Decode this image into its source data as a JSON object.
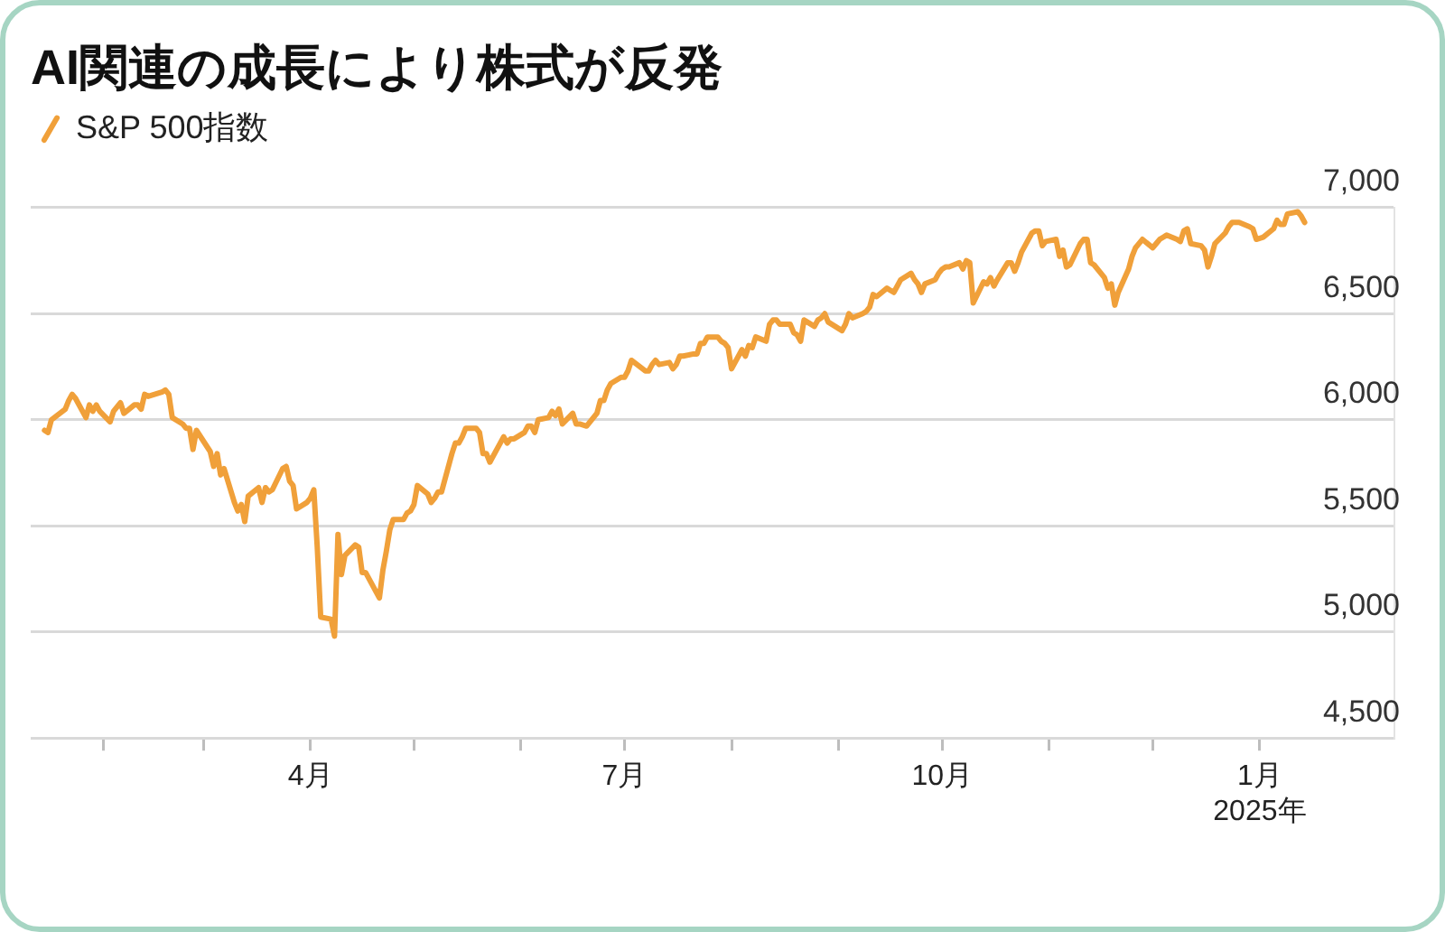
{
  "chart_data": {
    "type": "line",
    "title": "AI関連の成長により株式が反発",
    "x": [
      "2024-01-15",
      "2024-01-16",
      "2024-01-17",
      "2024-01-21",
      "2024-01-22",
      "2024-01-23",
      "2024-01-24",
      "2024-01-27",
      "2024-01-28",
      "2024-01-29",
      "2024-01-30",
      "2024-01-31",
      "2024-02-03",
      "2024-02-04",
      "2024-02-05",
      "2024-02-06",
      "2024-02-07",
      "2024-02-10",
      "2024-02-11",
      "2024-02-12",
      "2024-02-13",
      "2024-02-14",
      "2024-02-18",
      "2024-02-19",
      "2024-02-20",
      "2024-02-21",
      "2024-02-24",
      "2024-02-25",
      "2024-02-26",
      "2024-02-27",
      "2024-02-28",
      "2024-03-03",
      "2024-03-04",
      "2024-03-05",
      "2024-03-06",
      "2024-03-07",
      "2024-03-10",
      "2024-03-11",
      "2024-03-12",
      "2024-03-13",
      "2024-03-14",
      "2024-03-17",
      "2024-03-18",
      "2024-03-19",
      "2024-03-20",
      "2024-03-21",
      "2024-03-24",
      "2024-03-25",
      "2024-03-26",
      "2024-03-27",
      "2024-03-28",
      "2024-03-31",
      "2024-04-01",
      "2024-04-02",
      "2024-04-03",
      "2024-04-04",
      "2024-04-07",
      "2024-04-08",
      "2024-04-09",
      "2024-04-10",
      "2024-04-11",
      "2024-04-14",
      "2024-04-15",
      "2024-04-16",
      "2024-04-17",
      "2024-04-21",
      "2024-04-22",
      "2024-04-23",
      "2024-04-24",
      "2024-04-25",
      "2024-04-28",
      "2024-04-29",
      "2024-04-30",
      "2024-05-01",
      "2024-05-02",
      "2024-05-05",
      "2024-05-06",
      "2024-05-07",
      "2024-05-08",
      "2024-05-09",
      "2024-05-12",
      "2024-05-13",
      "2024-05-14",
      "2024-05-15",
      "2024-05-16",
      "2024-05-19",
      "2024-05-20",
      "2024-05-21",
      "2024-05-22",
      "2024-05-23",
      "2024-05-27",
      "2024-05-28",
      "2024-05-29",
      "2024-05-30",
      "2024-06-02",
      "2024-06-03",
      "2024-06-04",
      "2024-06-05",
      "2024-06-06",
      "2024-06-09",
      "2024-06-10",
      "2024-06-11",
      "2024-06-12",
      "2024-06-13",
      "2024-06-16",
      "2024-06-17",
      "2024-06-18",
      "2024-06-20",
      "2024-06-23",
      "2024-06-24",
      "2024-06-25",
      "2024-06-26",
      "2024-06-27",
      "2024-06-30",
      "2024-07-01",
      "2024-07-02",
      "2024-07-03",
      "2024-07-07",
      "2024-07-08",
      "2024-07-09",
      "2024-07-10",
      "2024-07-11",
      "2024-07-14",
      "2024-07-15",
      "2024-07-16",
      "2024-07-17",
      "2024-07-18",
      "2024-07-21",
      "2024-07-22",
      "2024-07-23",
      "2024-07-24",
      "2024-07-25",
      "2024-07-28",
      "2024-07-29",
      "2024-07-30",
      "2024-07-31",
      "2024-08-01",
      "2024-08-04",
      "2024-08-05",
      "2024-08-06",
      "2024-08-07",
      "2024-08-08",
      "2024-08-11",
      "2024-08-12",
      "2024-08-13",
      "2024-08-14",
      "2024-08-15",
      "2024-08-18",
      "2024-08-19",
      "2024-08-20",
      "2024-08-21",
      "2024-08-22",
      "2024-08-25",
      "2024-08-26",
      "2024-08-27",
      "2024-08-28",
      "2024-08-29",
      "2024-09-02",
      "2024-09-03",
      "2024-09-04",
      "2024-09-05",
      "2024-09-08",
      "2024-09-09",
      "2024-09-10",
      "2024-09-11",
      "2024-09-12",
      "2024-09-15",
      "2024-09-16",
      "2024-09-17",
      "2024-09-18",
      "2024-09-19",
      "2024-09-22",
      "2024-09-23",
      "2024-09-24",
      "2024-09-25",
      "2024-09-26",
      "2024-09-29",
      "2024-09-30",
      "2024-10-01",
      "2024-10-02",
      "2024-10-03",
      "2024-10-06",
      "2024-10-07",
      "2024-10-08",
      "2024-10-09",
      "2024-10-10",
      "2024-10-13",
      "2024-10-14",
      "2024-10-15",
      "2024-10-16",
      "2024-10-17",
      "2024-10-20",
      "2024-10-21",
      "2024-10-22",
      "2024-10-23",
      "2024-10-24",
      "2024-10-27",
      "2024-10-28",
      "2024-10-29",
      "2024-10-30",
      "2024-10-31",
      "2024-11-03",
      "2024-11-04",
      "2024-11-05",
      "2024-11-06",
      "2024-11-07",
      "2024-11-10",
      "2024-11-11",
      "2024-11-12",
      "2024-11-13",
      "2024-11-14",
      "2024-11-17",
      "2024-11-18",
      "2024-11-19",
      "2024-11-20",
      "2024-11-21",
      "2024-11-24",
      "2024-11-25",
      "2024-11-26",
      "2024-11-28",
      "2024-12-01",
      "2024-12-02",
      "2024-12-03",
      "2024-12-04",
      "2024-12-05",
      "2024-12-08",
      "2024-12-09",
      "2024-12-10",
      "2024-12-11",
      "2024-12-12",
      "2024-12-15",
      "2024-12-16",
      "2024-12-17",
      "2024-12-18",
      "2024-12-19",
      "2024-12-22",
      "2024-12-23",
      "2024-12-24",
      "2024-12-26",
      "2024-12-29",
      "2024-12-30",
      "2024-12-31",
      "2025-01-02",
      "2025-01-05",
      "2025-01-06",
      "2025-01-07",
      "2025-01-08",
      "2025-01-09",
      "2025-01-12",
      "2025-01-13",
      "2025-01-14"
    ],
    "series": [
      {
        "name": "S&P 500指数",
        "color": "#f0a03a",
        "values": [
          5950,
          5940,
          6000,
          6050,
          6090,
          6120,
          6100,
          6010,
          6070,
          6040,
          6070,
          6040,
          5990,
          6040,
          6060,
          6080,
          6030,
          6070,
          6070,
          6050,
          6120,
          6110,
          6130,
          6140,
          6120,
          6010,
          5980,
          5960,
          5960,
          5860,
          5950,
          5850,
          5780,
          5840,
          5740,
          5770,
          5610,
          5570,
          5600,
          5520,
          5640,
          5680,
          5610,
          5680,
          5660,
          5670,
          5770,
          5780,
          5710,
          5690,
          5580,
          5610,
          5630,
          5670,
          5400,
          5070,
          5060,
          4980,
          5460,
          5270,
          5360,
          5410,
          5400,
          5280,
          5280,
          5160,
          5290,
          5380,
          5480,
          5530,
          5530,
          5560,
          5570,
          5600,
          5690,
          5650,
          5610,
          5630,
          5660,
          5660,
          5840,
          5890,
          5890,
          5920,
          5960,
          5960,
          5940,
          5840,
          5840,
          5800,
          5920,
          5890,
          5910,
          5910,
          5940,
          5970,
          5970,
          5940,
          6000,
          6010,
          6040,
          6020,
          6050,
          5980,
          6030,
          5980,
          5980,
          5970,
          6030,
          6090,
          6090,
          6140,
          6170,
          6200,
          6200,
          6230,
          6280,
          6230,
          6230,
          6260,
          6280,
          6260,
          6270,
          6240,
          6260,
          6300,
          6300,
          6310,
          6310,
          6360,
          6360,
          6390,
          6390,
          6370,
          6360,
          6340,
          6240,
          6330,
          6300,
          6350,
          6340,
          6390,
          6370,
          6450,
          6470,
          6470,
          6450,
          6450,
          6410,
          6400,
          6370,
          6470,
          6440,
          6470,
          6480,
          6500,
          6460,
          6420,
          6450,
          6500,
          6480,
          6500,
          6510,
          6530,
          6590,
          6580,
          6620,
          6610,
          6600,
          6630,
          6660,
          6690,
          6660,
          6640,
          6600,
          6640,
          6660,
          6690,
          6710,
          6720,
          6720,
          6740,
          6710,
          6750,
          6740,
          6550,
          6650,
          6640,
          6670,
          6630,
          6660,
          6740,
          6740,
          6700,
          6740,
          6790,
          6880,
          6890,
          6890,
          6820,
          6840,
          6850,
          6770,
          6800,
          6720,
          6730,
          6830,
          6850,
          6850,
          6740,
          6730,
          6670,
          6620,
          6640,
          6540,
          6600,
          6710,
          6770,
          6810,
          6850,
          6810,
          6830,
          6850,
          6860,
          6870,
          6850,
          6840,
          6890,
          6900,
          6830,
          6820,
          6800,
          6720,
          6770,
          6830,
          6880,
          6910,
          6930,
          6930,
          6910,
          6900,
          6850,
          6860,
          6900,
          6940,
          6920,
          6920,
          6970,
          6980,
          6960,
          6930
        ]
      }
    ],
    "xlim": [
      "2024-01-11",
      "2025-02-09"
    ],
    "xticks": [
      {
        "value": "2024-02-01",
        "label": null
      },
      {
        "value": "2024-03-01",
        "label": null
      },
      {
        "value": "2024-04-01",
        "label": "4月"
      },
      {
        "value": "2024-05-01",
        "label": null
      },
      {
        "value": "2024-06-01",
        "label": null
      },
      {
        "value": "2024-07-01",
        "label": "7月"
      },
      {
        "value": "2024-08-01",
        "label": null
      },
      {
        "value": "2024-09-01",
        "label": null
      },
      {
        "value": "2024-10-01",
        "label": "10月"
      },
      {
        "value": "2024-11-01",
        "label": null
      },
      {
        "value": "2024-12-01",
        "label": null
      },
      {
        "value": "2025-01-01",
        "label": "1月\n2025年"
      }
    ],
    "ylim": [
      4500,
      7000
    ],
    "yticks": [
      {
        "value": 4500,
        "label": "4,500"
      },
      {
        "value": 5000,
        "label": "5,000"
      },
      {
        "value": 5500,
        "label": "5,500"
      },
      {
        "value": 6000,
        "label": "6,000"
      },
      {
        "value": 6500,
        "label": "6,500"
      },
      {
        "value": 7000,
        "label": "7,000"
      }
    ],
    "grid": "y",
    "legend": "top left",
    "marker": "none",
    "line_style": "solid"
  }
}
